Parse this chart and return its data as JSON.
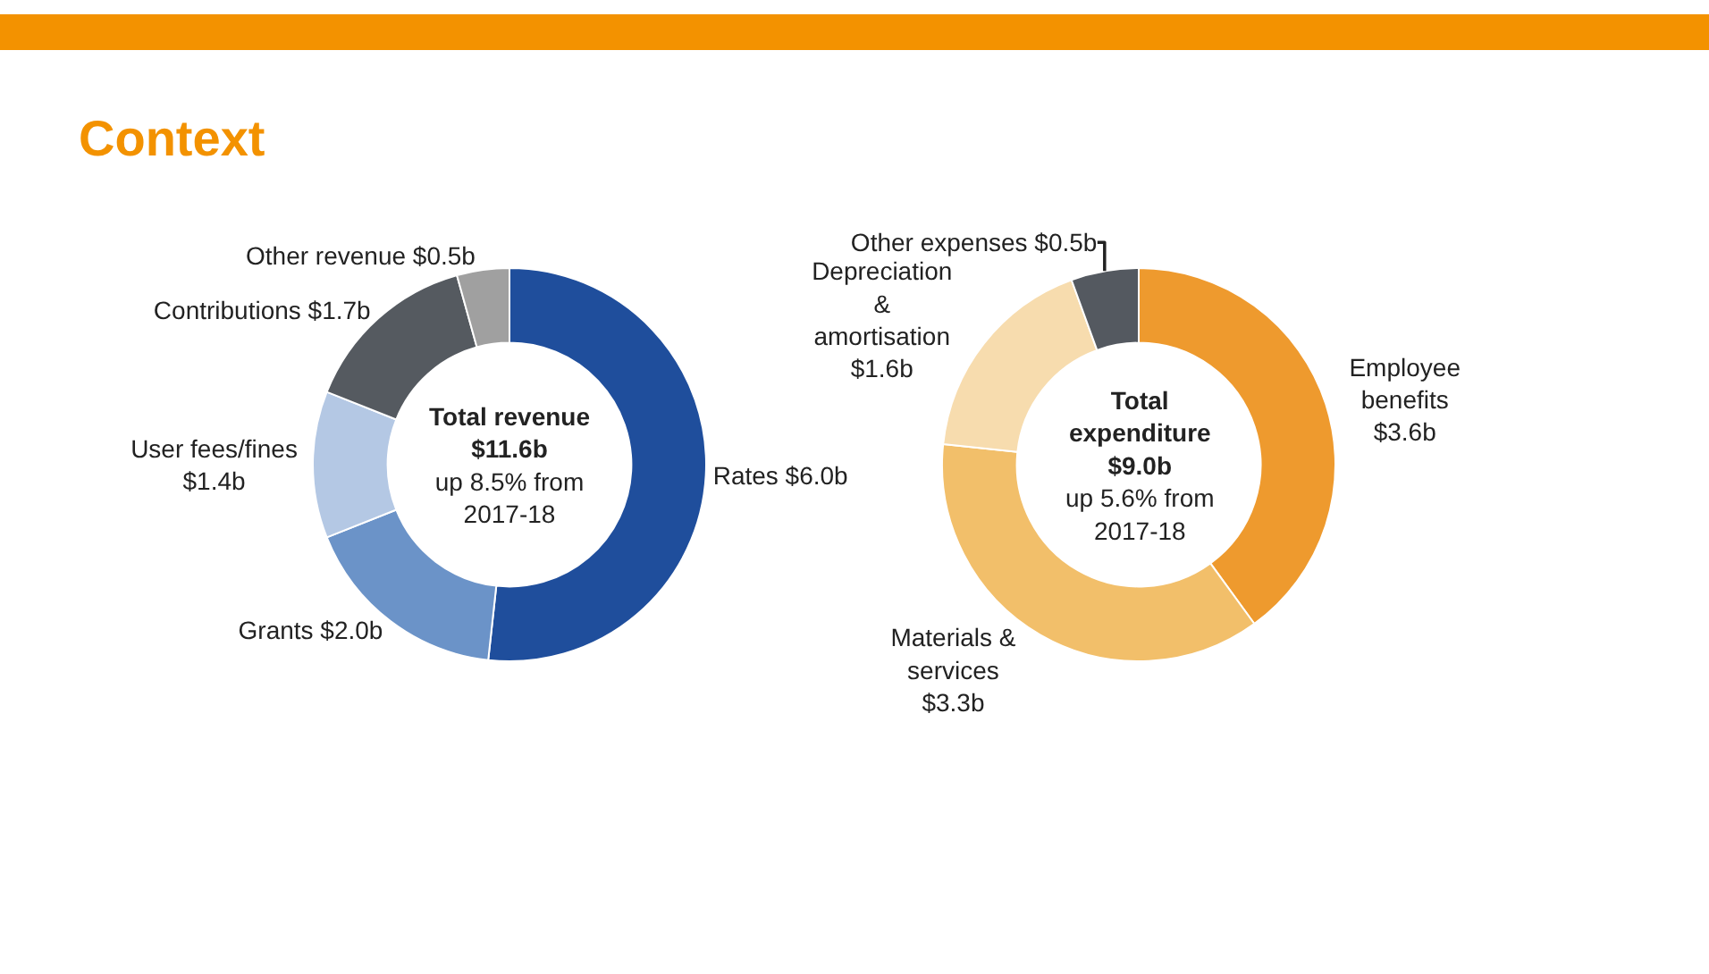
{
  "chart_data": [
    {
      "type": "donut",
      "title": "Context",
      "categories": [
        "Rates",
        "Grants",
        "User fees/fines",
        "Contributions",
        "Other revenue"
      ],
      "values": [
        6.0,
        2.0,
        1.4,
        1.7,
        0.5
      ],
      "value_labels": [
        "$6.0b",
        "$2.0b",
        "$1.4b",
        "$1.7b",
        "$0.5b"
      ],
      "colors": [
        "#1f4e9c",
        "#6b93c8",
        "#b4c8e4",
        "#555a60",
        "#a0a0a0"
      ],
      "annotations": [
        "Total revenue",
        "$11.6b",
        "up 8.5% from 2017-18"
      ],
      "legend": false
    },
    {
      "type": "donut",
      "categories": [
        "Employee benefits",
        "Materials & services",
        "Depreciation & amortisation",
        "Other expenses"
      ],
      "values": [
        3.6,
        3.3,
        1.6,
        0.5
      ],
      "value_labels": [
        "$3.6b",
        "$3.3b",
        "$1.6b",
        "$0.5b"
      ],
      "colors": [
        "#ee9a2e",
        "#f2bf6a",
        "#f7dcae",
        "#545960"
      ],
      "annotations": [
        "Total expenditure",
        "$9.0b",
        "up 5.6% from 2017-18"
      ],
      "legend": false
    }
  ]
}
